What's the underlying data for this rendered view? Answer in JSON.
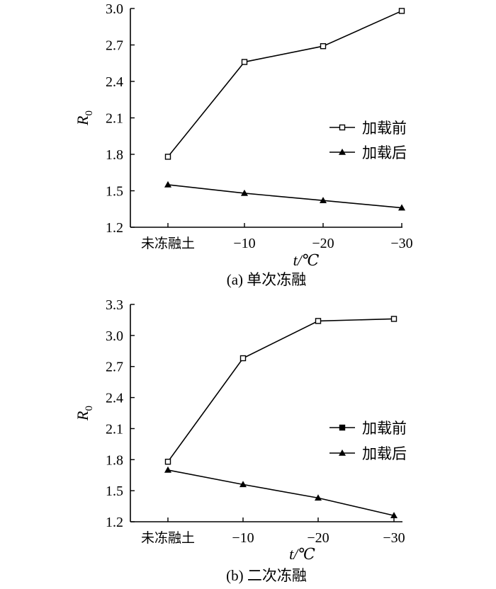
{
  "chart_data": [
    {
      "type": "line",
      "caption": "(a) 单次冻融",
      "categories": [
        "未冻融土",
        "−10",
        "−20",
        "−30"
      ],
      "ylabel": "R",
      "ylabel_sub": "0",
      "xlabel": "t/℃",
      "ylim": [
        1.2,
        3.0
      ],
      "yticks": [
        "1.2",
        "1.5",
        "1.8",
        "2.1",
        "2.4",
        "2.7",
        "3.0"
      ],
      "legend_position": "right-middle",
      "series": [
        {
          "name": "加载前",
          "marker": "open-square",
          "values": [
            1.78,
            2.56,
            2.69,
            2.98
          ]
        },
        {
          "name": "加载后",
          "marker": "filled-triangle",
          "values": [
            1.55,
            1.48,
            1.42,
            1.36
          ]
        }
      ]
    },
    {
      "type": "line",
      "caption": "(b) 二次冻融",
      "categories": [
        "未冻融土",
        "−10",
        "−20",
        "−30"
      ],
      "ylabel": "R",
      "ylabel_sub": "0",
      "xlabel": "t/℃",
      "ylim": [
        1.2,
        3.3
      ],
      "yticks": [
        "1.2",
        "1.5",
        "1.8",
        "2.1",
        "2.4",
        "2.7",
        "3.0",
        "3.3"
      ],
      "legend_position": "right-middle",
      "series": [
        {
          "name": "加载前",
          "marker": "open-square",
          "legend_marker": "filled-square",
          "values": [
            1.78,
            2.78,
            3.14,
            3.16
          ]
        },
        {
          "name": "加载后",
          "marker": "filled-triangle",
          "values": [
            1.7,
            1.56,
            1.43,
            1.26
          ]
        }
      ]
    }
  ]
}
